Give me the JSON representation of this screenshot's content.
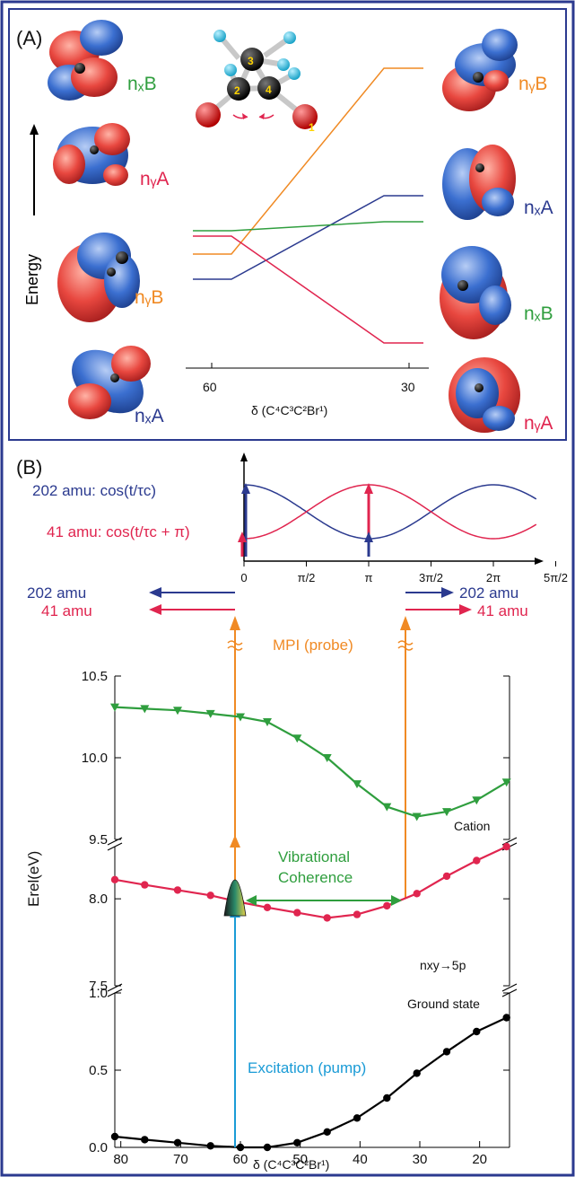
{
  "colors": {
    "frame": "#2b3a8f",
    "red": "#e0254f",
    "blue": "#2b3a8f",
    "green": "#2f9e3e",
    "orange": "#f08a24",
    "cyan": "#1a9bd6",
    "black": "#000000",
    "orbital_red": "#e8473f",
    "orbital_blue": "#3b6fd0"
  },
  "panelA": {
    "label": "(A)",
    "energy_label": "Energy",
    "xaxis_label": "δ (C⁴C³C²Br¹)",
    "xtick_left": "60",
    "xtick_right": "30",
    "left_orbitals": [
      {
        "label": "nₓB",
        "color": "green"
      },
      {
        "label": "nᵧA",
        "color": "red"
      },
      {
        "label": "nᵧB",
        "color": "orange"
      },
      {
        "label": "nₓA",
        "color": "blue"
      }
    ],
    "right_orbitals": [
      {
        "label": "nᵧB",
        "color": "orange"
      },
      {
        "label": "nₓA",
        "color": "blue"
      },
      {
        "label": "nₓB",
        "color": "green"
      },
      {
        "label": "nᵧA",
        "color": "red"
      }
    ],
    "atom_numbers": [
      "1",
      "2",
      "3",
      "4"
    ]
  },
  "panelB": {
    "label": "(B)",
    "legend_202": "202 amu:  cos(t/τc)",
    "legend_41": "41 amu:  cos(t/τc + π)",
    "phase_ticks": [
      "0",
      "π/2",
      "π",
      "3π/2",
      "2π",
      "5π/2"
    ],
    "arrow_202_left": "202 amu",
    "arrow_41_left": "41 amu",
    "arrow_202_right": "202 amu",
    "arrow_41_right": "41 amu",
    "probe_label": "MPI (probe)",
    "coherence_label_1": "Vibrational",
    "coherence_label_2": "Coherence",
    "pump_label": "Excitation (pump)",
    "ylabel": "Erel(eV)",
    "xlabel": "δ (C⁴C³C²Br¹)",
    "cation_label": "Cation",
    "rydberg_label": "nxy→5p",
    "ground_label": "Ground state"
  },
  "chart_data": {
    "type": "line",
    "title": "",
    "xlabel": "δ (C⁴C³C²Br¹)",
    "ylabel": "Erel(eV)",
    "x_ticks": [
      "80",
      "70",
      "60",
      "50",
      "40",
      "30",
      "20"
    ],
    "xlim": [
      81,
      15
    ],
    "y_segments": [
      {
        "range": [
          9.5,
          10.5
        ],
        "ticks": [
          "10.5",
          "10.0",
          "9.5"
        ]
      },
      {
        "range": [
          7.5,
          8.3
        ],
        "ticks": [
          "8.0",
          "7.5"
        ]
      },
      {
        "range": [
          0.0,
          1.0
        ],
        "ticks": [
          "1.0",
          "0.5",
          "0.0"
        ]
      }
    ],
    "series": [
      {
        "name": "Cation",
        "color": "#2f9e3e",
        "marker": "triangle-down",
        "x": [
          81,
          76,
          70.5,
          65,
          60,
          55.5,
          50.5,
          45.5,
          40.5,
          35.5,
          30.5,
          25.5,
          20.5,
          15.5
        ],
        "y": [
          10.31,
          10.3,
          10.29,
          10.27,
          10.25,
          10.22,
          10.12,
          10.0,
          9.84,
          9.7,
          9.64,
          9.67,
          9.74,
          9.85
        ]
      },
      {
        "name": "nxy→5p",
        "color": "#e0254f",
        "marker": "circle",
        "x": [
          81,
          76,
          70.5,
          65,
          60,
          55.5,
          50.5,
          45.5,
          40.5,
          35.5,
          30.5,
          25.5,
          20.5,
          15.5
        ],
        "y": [
          8.11,
          8.08,
          8.05,
          8.02,
          7.98,
          7.95,
          7.92,
          7.89,
          7.91,
          7.96,
          8.03,
          8.13,
          8.22,
          8.3
        ]
      },
      {
        "name": "Ground state",
        "color": "#000000",
        "marker": "circle",
        "x": [
          81,
          76,
          70.5,
          65,
          60,
          55.5,
          50.5,
          45.5,
          40.5,
          35.5,
          30.5,
          25.5,
          20.5,
          15.5
        ],
        "y": [
          0.07,
          0.05,
          0.03,
          0.01,
          0.0,
          0.0,
          0.03,
          0.1,
          0.19,
          0.32,
          0.48,
          0.62,
          0.75,
          0.84
        ]
      }
    ]
  }
}
